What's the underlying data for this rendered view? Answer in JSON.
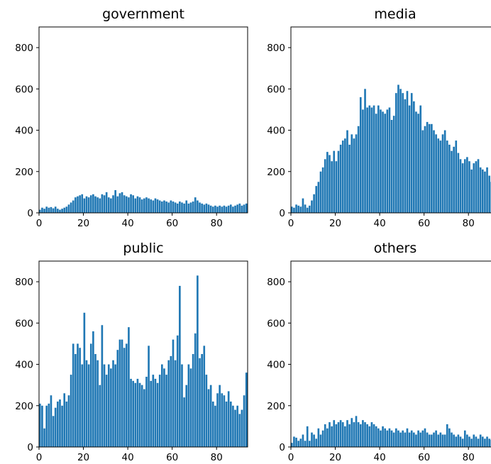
{
  "chart_data": [
    {
      "type": "bar",
      "title": "government",
      "xlabel": "",
      "ylabel": "",
      "xlim": [
        0,
        94
      ],
      "ylim": [
        0,
        900
      ],
      "xticks": [
        "0",
        "20",
        "40",
        "60",
        "80"
      ],
      "yticks": [
        "0",
        "200",
        "400",
        "600",
        "800"
      ],
      "color": "#1f77b4",
      "values": [
        15,
        25,
        20,
        30,
        25,
        28,
        22,
        30,
        20,
        15,
        20,
        25,
        30,
        40,
        50,
        60,
        75,
        80,
        85,
        90,
        70,
        80,
        75,
        85,
        90,
        80,
        75,
        70,
        90,
        85,
        100,
        75,
        70,
        85,
        110,
        80,
        95,
        100,
        85,
        80,
        75,
        90,
        85,
        70,
        80,
        75,
        65,
        70,
        75,
        70,
        65,
        60,
        70,
        65,
        60,
        55,
        60,
        55,
        50,
        60,
        55,
        50,
        45,
        55,
        50,
        45,
        60,
        45,
        50,
        55,
        75,
        60,
        50,
        45,
        40,
        45,
        40,
        35,
        30,
        35,
        30,
        35,
        30,
        35,
        30,
        35,
        40,
        30,
        35,
        40,
        45,
        35,
        40,
        45
      ]
    },
    {
      "type": "bar",
      "title": "media",
      "xlabel": "",
      "ylabel": "",
      "xlim": [
        0,
        94
      ],
      "ylim": [
        0,
        900
      ],
      "xticks": [
        "0",
        "20",
        "40",
        "60",
        "80"
      ],
      "yticks": [
        "0",
        "200",
        "400",
        "600",
        "800"
      ],
      "color": "#1f77b4",
      "values": [
        30,
        25,
        40,
        35,
        30,
        70,
        40,
        25,
        35,
        60,
        90,
        130,
        150,
        200,
        220,
        260,
        295,
        280,
        250,
        300,
        250,
        300,
        330,
        350,
        360,
        400,
        330,
        380,
        360,
        380,
        420,
        560,
        500,
        600,
        510,
        520,
        510,
        520,
        480,
        520,
        500,
        490,
        480,
        500,
        510,
        450,
        470,
        580,
        620,
        600,
        580,
        550,
        590,
        520,
        580,
        540,
        490,
        480,
        520,
        400,
        420,
        440,
        430,
        430,
        400,
        380,
        360,
        350,
        380,
        400,
        350,
        330,
        300,
        320,
        350,
        290,
        260,
        240,
        260,
        270,
        250,
        210,
        240,
        250,
        260,
        220,
        210,
        200,
        220,
        180,
        150,
        170,
        130,
        160
      ]
    },
    {
      "type": "bar",
      "title": "public",
      "xlabel": "",
      "ylabel": "",
      "xlim": [
        0,
        94
      ],
      "ylim": [
        0,
        900
      ],
      "xticks": [
        "0",
        "20",
        "40",
        "60",
        "80"
      ],
      "yticks": [
        "0",
        "200",
        "400",
        "600",
        "800"
      ],
      "color": "#1f77b4",
      "values": [
        210,
        200,
        90,
        200,
        210,
        250,
        150,
        190,
        220,
        230,
        200,
        260,
        220,
        250,
        350,
        500,
        450,
        500,
        480,
        400,
        650,
        420,
        400,
        500,
        560,
        450,
        420,
        300,
        590,
        400,
        350,
        400,
        380,
        420,
        400,
        470,
        520,
        520,
        480,
        500,
        580,
        330,
        320,
        310,
        330,
        310,
        300,
        280,
        340,
        490,
        320,
        350,
        330,
        310,
        350,
        400,
        380,
        350,
        420,
        440,
        520,
        420,
        540,
        780,
        400,
        240,
        300,
        400,
        380,
        450,
        550,
        830,
        430,
        450,
        490,
        350,
        280,
        300,
        220,
        200,
        260,
        300,
        260,
        250,
        220,
        270,
        220,
        200,
        180,
        200,
        160,
        180,
        250,
        360
      ]
    },
    {
      "type": "bar",
      "title": "others",
      "xlabel": "",
      "ylabel": "",
      "xlim": [
        0,
        94
      ],
      "ylim": [
        0,
        900
      ],
      "xticks": [
        "0",
        "20",
        "40",
        "60",
        "80"
      ],
      "yticks": [
        "0",
        "200",
        "400",
        "600",
        "800"
      ],
      "color": "#1f77b4",
      "values": [
        20,
        50,
        45,
        30,
        40,
        60,
        30,
        100,
        30,
        70,
        60,
        40,
        90,
        60,
        80,
        110,
        90,
        120,
        100,
        130,
        110,
        120,
        130,
        120,
        100,
        130,
        110,
        140,
        120,
        150,
        120,
        110,
        130,
        120,
        110,
        100,
        120,
        110,
        100,
        90,
        80,
        100,
        90,
        80,
        90,
        80,
        70,
        90,
        80,
        70,
        80,
        70,
        90,
        70,
        80,
        70,
        60,
        80,
        70,
        80,
        90,
        70,
        60,
        60,
        70,
        80,
        60,
        70,
        60,
        60,
        110,
        90,
        70,
        60,
        50,
        60,
        50,
        40,
        80,
        60,
        50,
        40,
        60,
        50,
        40,
        60,
        50,
        40,
        50,
        40,
        35,
        45,
        40,
        50
      ]
    }
  ]
}
